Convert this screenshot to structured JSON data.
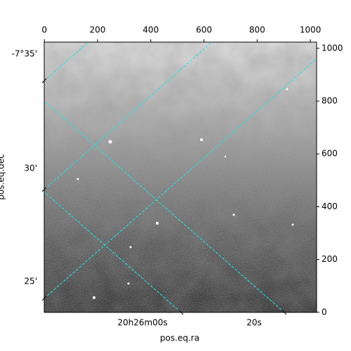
{
  "chart_data": {
    "type": "image",
    "xlabel": "pos.eq.ra",
    "ylabel": "pos.eq.dec",
    "xlim": [
      -0.5,
      1023.5
    ],
    "ylim": [
      -0.5,
      1023.5
    ],
    "xticks": [
      0,
      200,
      400,
      600,
      800,
      1000
    ],
    "yticks": [
      0,
      200,
      400,
      600,
      800,
      1000
    ],
    "dec_ticks": [
      "-7°35'",
      "30'",
      "25'"
    ],
    "ra_ticks": [
      {
        "value": 0,
        "label": "20h26m00s"
      },
      {
        "value": 20,
        "label": "20s"
      }
    ],
    "grid": true,
    "grid_color": "#19e6e6",
    "colormap": "gray"
  }
}
